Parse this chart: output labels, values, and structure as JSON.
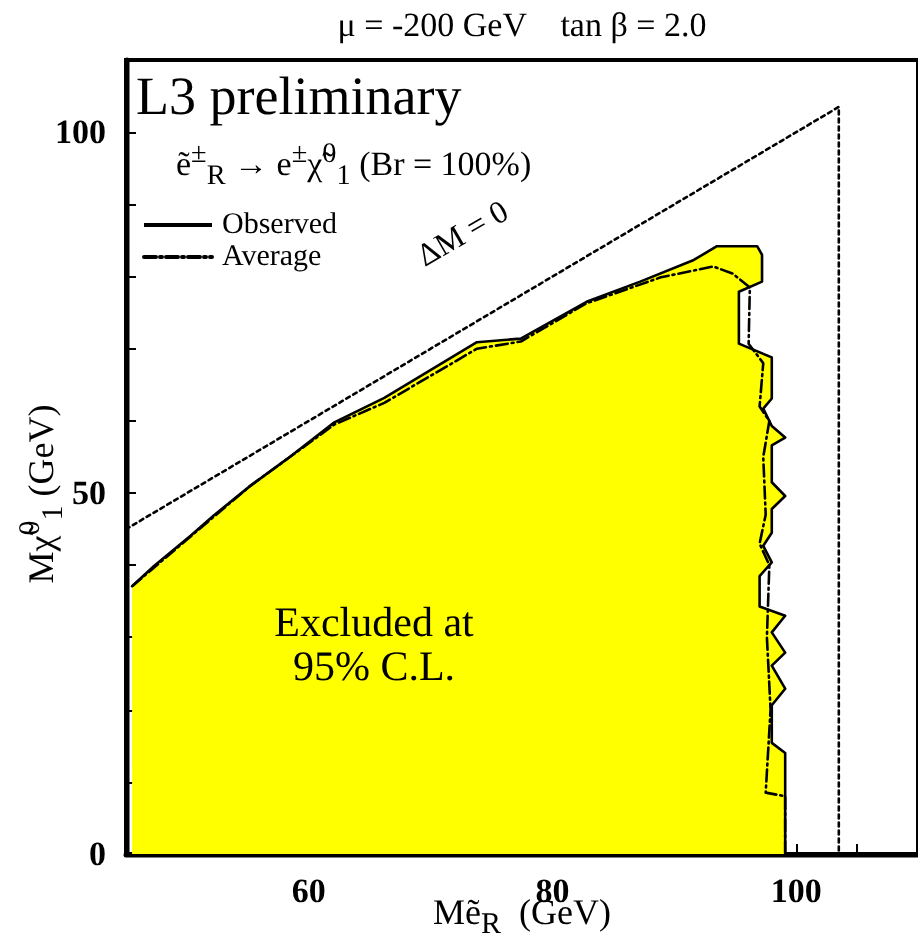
{
  "chart_data": {
    "type": "line",
    "title": "μ = -200 GeV    tan β = 2.0",
    "xlabel": "Mẽ$_{R}$  (GeV)",
    "ylabel": "Mχ̃$^{0}$$_{1}$ (GeV)",
    "annotations": [
      "L3 preliminary",
      "ẽ$^{±}$$_{R}$ → e$^{±}$χ̃$^{0}$$_{1}$ (Br = 100%)",
      "Excluded at\n95% C.L.",
      "ΔM = 0"
    ],
    "xlim": [
      45,
      110
    ],
    "ylim": [
      0,
      110
    ],
    "xticks": [
      {
        "value": 45,
        "label": null
      },
      {
        "value": 50,
        "label": null
      },
      {
        "value": 55,
        "label": null
      },
      60,
      {
        "value": 65,
        "label": null
      },
      {
        "value": 70,
        "label": null
      },
      {
        "value": 75,
        "label": null
      },
      80,
      {
        "value": 85,
        "label": null
      },
      {
        "value": 90,
        "label": null
      },
      {
        "value": 95,
        "label": null
      },
      100,
      {
        "value": 105,
        "label": null
      }
    ],
    "yticks": [
      0,
      {
        "value": 10,
        "label": null
      },
      {
        "value": 20,
        "label": null
      },
      {
        "value": 30,
        "label": null
      },
      {
        "value": 40,
        "label": null
      },
      50,
      {
        "value": 60,
        "label": null
      },
      {
        "value": 70,
        "label": null
      },
      {
        "value": 80,
        "label": null
      },
      {
        "value": 90,
        "label": null
      },
      100
    ],
    "grid": false,
    "legend": "top left",
    "marker": "none",
    "series": [
      {
        "name": "Observed",
        "type": "area",
        "color": "#ffff00",
        "line_style": "solid",
        "x": [
          45.5,
          47.3,
          50.3,
          52.2,
          55.2,
          58.2,
          62.1,
          66.2,
          73.8,
          77.4,
          82.8,
          87.2,
          91.6,
          93.5,
          96.8,
          97.2,
          97.2,
          95.3,
          95.3,
          98.0,
          98.0,
          97.3,
          98.0,
          99.1,
          98.0,
          98.0,
          99.1,
          98.0,
          98.0,
          97.3,
          98.0,
          97.0,
          97.0,
          99.1,
          98.0,
          99.1,
          98.0,
          99.1,
          98.0,
          98.0,
          99.1,
          99.1
        ],
        "values": [
          37.1,
          39.9,
          44.1,
          46.9,
          51,
          54.7,
          59.8,
          63.2,
          70.9,
          71.4,
          76.5,
          79.3,
          82.3,
          84.2,
          84.2,
          83,
          79.3,
          77.9,
          70.7,
          68.8,
          63.1,
          61.7,
          59.3,
          57.7,
          56.6,
          51.5,
          49.6,
          47.8,
          44.5,
          42.7,
          40.4,
          38.5,
          34.3,
          33,
          30.7,
          27.9,
          26.1,
          22.9,
          20.6,
          15.4,
          14,
          0
        ]
      },
      {
        "name": "Average",
        "color": "#000000",
        "line_style": "dashed",
        "x": [
          45.5,
          50.3,
          55.2,
          62.1,
          66.2,
          73.8,
          77.4,
          82.8,
          88.9,
          93.2,
          94.8,
          96.2,
          96.1,
          97.3,
          97.0,
          97.8,
          97.3,
          97.5,
          97.0,
          97.8,
          97.6,
          97.9,
          97.5,
          99.1,
          99.1
        ],
        "values": [
          37.1,
          44.0,
          51,
          59.5,
          62.5,
          70.0,
          71.0,
          76.3,
          79.9,
          81.4,
          80.4,
          78.5,
          70.7,
          68.0,
          62.0,
          60.0,
          55.0,
          47.0,
          43.0,
          40.0,
          30.0,
          20.0,
          8.5,
          8.0,
          0
        ]
      },
      {
        "color": "#000000",
        "line_style": "dotted",
        "x": [
          45,
          103.5,
          103.5
        ],
        "values": [
          45,
          103.5,
          0
        ]
      }
    ]
  }
}
